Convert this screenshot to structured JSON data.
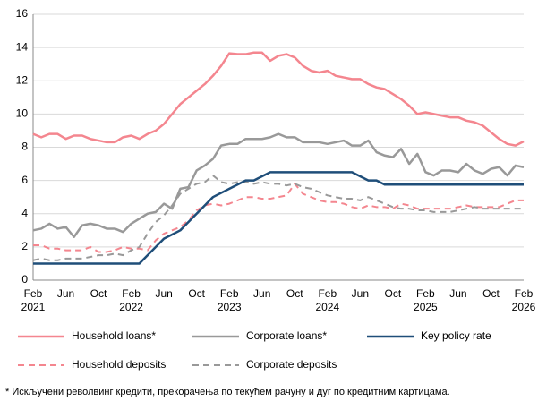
{
  "chart_data": {
    "type": "line",
    "footnote": "* Искључени револвинг кредити, прекорачења по текућем рачуну и дуг по кредитним картицама.",
    "categories": [
      "Feb\n2021",
      null,
      null,
      null,
      "Jun",
      null,
      null,
      null,
      "Oct",
      null,
      null,
      null,
      "Feb\n2022",
      null,
      null,
      null,
      "Jun",
      null,
      null,
      null,
      "Oct",
      null,
      null,
      null,
      "Feb\n2023",
      null,
      null,
      null,
      "Jun",
      null,
      null,
      null,
      "Oct",
      null,
      null,
      null,
      "Feb\n2024",
      null,
      null,
      null,
      "Jun",
      null,
      null,
      null,
      "Oct",
      null,
      null,
      null,
      "Feb\n2025",
      null,
      null,
      null,
      "Jun",
      null,
      null,
      null,
      "Oct",
      null,
      null,
      null,
      "Feb\n2026"
    ],
    "ylim": [
      0,
      16
    ],
    "yticks": [
      0,
      2,
      4,
      6,
      8,
      10,
      12,
      14,
      16
    ],
    "grid": true,
    "series": [
      {
        "name": "Household loans*",
        "color": "#f4868f",
        "dashed": false,
        "values": [
          8.8,
          8.6,
          8.8,
          8.8,
          8.5,
          8.7,
          8.7,
          8.5,
          8.4,
          8.3,
          8.3,
          8.6,
          8.7,
          8.5,
          8.8,
          9.0,
          9.4,
          10.0,
          10.6,
          11.0,
          11.4,
          11.8,
          12.3,
          12.9,
          13.65,
          13.6,
          13.6,
          13.7,
          13.7,
          13.2,
          13.5,
          13.6,
          13.4,
          12.9,
          12.6,
          12.5,
          12.6,
          12.3,
          12.2,
          12.1,
          12.1,
          11.8,
          11.6,
          11.5,
          11.2,
          10.9,
          10.5,
          10.0,
          10.1,
          10.0,
          9.9,
          9.8,
          9.8,
          9.6,
          9.5,
          9.3,
          8.9,
          8.5,
          8.2,
          8.1,
          8.35
        ]
      },
      {
        "name": "Corporate loans*",
        "color": "#999999",
        "dashed": false,
        "values": [
          3.0,
          3.1,
          3.4,
          3.1,
          3.2,
          2.6,
          3.3,
          3.4,
          3.3,
          3.1,
          3.1,
          2.9,
          3.4,
          3.7,
          4.0,
          4.1,
          4.6,
          4.3,
          5.5,
          5.6,
          6.6,
          6.9,
          7.3,
          8.1,
          8.2,
          8.2,
          8.5,
          8.5,
          8.5,
          8.6,
          8.8,
          8.6,
          8.6,
          8.3,
          8.3,
          8.3,
          8.2,
          8.3,
          8.4,
          8.1,
          8.1,
          8.4,
          7.7,
          7.5,
          7.4,
          7.9,
          7.0,
          7.6,
          6.5,
          6.3,
          6.6,
          6.6,
          6.5,
          7.0,
          6.6,
          6.4,
          6.7,
          6.8,
          6.3,
          6.9,
          6.8
        ]
      },
      {
        "name": "Key policy rate",
        "color": "#1f4e79",
        "dashed": false,
        "values": [
          1,
          1,
          1,
          1,
          1,
          1,
          1,
          1,
          1,
          1,
          1,
          1,
          1,
          1,
          1.5,
          2.0,
          2.5,
          2.75,
          3.0,
          3.5,
          4.0,
          4.5,
          5.0,
          5.25,
          5.5,
          5.75,
          6.0,
          6.0,
          6.25,
          6.5,
          6.5,
          6.5,
          6.5,
          6.5,
          6.5,
          6.5,
          6.5,
          6.5,
          6.5,
          6.5,
          6.25,
          6.0,
          6.0,
          5.75,
          5.75,
          5.75,
          5.75,
          5.75,
          5.75,
          5.75,
          5.75,
          5.75,
          5.75,
          5.75,
          5.75,
          5.75,
          5.75,
          5.75,
          5.75,
          5.75,
          5.75
        ]
      },
      {
        "name": "Household deposits",
        "color": "#f4868f",
        "dashed": true,
        "values": [
          2.1,
          2.1,
          1.9,
          1.9,
          1.8,
          1.8,
          1.8,
          2.0,
          1.7,
          1.7,
          1.8,
          2.0,
          1.9,
          1.9,
          1.8,
          2.4,
          2.8,
          3.0,
          3.2,
          3.6,
          4.2,
          4.5,
          4.6,
          4.5,
          4.6,
          4.8,
          5.0,
          5.0,
          4.9,
          4.9,
          5.0,
          5.1,
          5.8,
          5.2,
          5.0,
          4.8,
          4.7,
          4.7,
          4.6,
          4.4,
          4.3,
          4.5,
          4.4,
          4.4,
          4.3,
          4.6,
          4.5,
          4.3,
          4.3,
          4.3,
          4.3,
          4.3,
          4.4,
          4.5,
          4.4,
          4.4,
          4.4,
          4.4,
          4.6,
          4.8,
          4.8
        ]
      },
      {
        "name": "Corporate deposits",
        "color": "#999999",
        "dashed": true,
        "values": [
          1.2,
          1.3,
          1.2,
          1.2,
          1.3,
          1.3,
          1.3,
          1.4,
          1.5,
          1.5,
          1.6,
          1.5,
          1.8,
          2.0,
          2.8,
          3.5,
          3.9,
          4.5,
          5.2,
          5.5,
          5.8,
          5.9,
          6.3,
          5.9,
          5.8,
          5.9,
          5.9,
          5.8,
          5.9,
          5.8,
          5.8,
          5.7,
          5.8,
          5.6,
          5.5,
          5.3,
          5.1,
          5.0,
          4.9,
          4.9,
          4.8,
          5.0,
          4.8,
          4.6,
          4.4,
          4.3,
          4.3,
          4.2,
          4.2,
          4.1,
          4.1,
          4.1,
          4.2,
          4.3,
          4.4,
          4.3,
          4.3,
          4.3,
          4.3,
          4.3,
          4.3
        ]
      }
    ]
  }
}
